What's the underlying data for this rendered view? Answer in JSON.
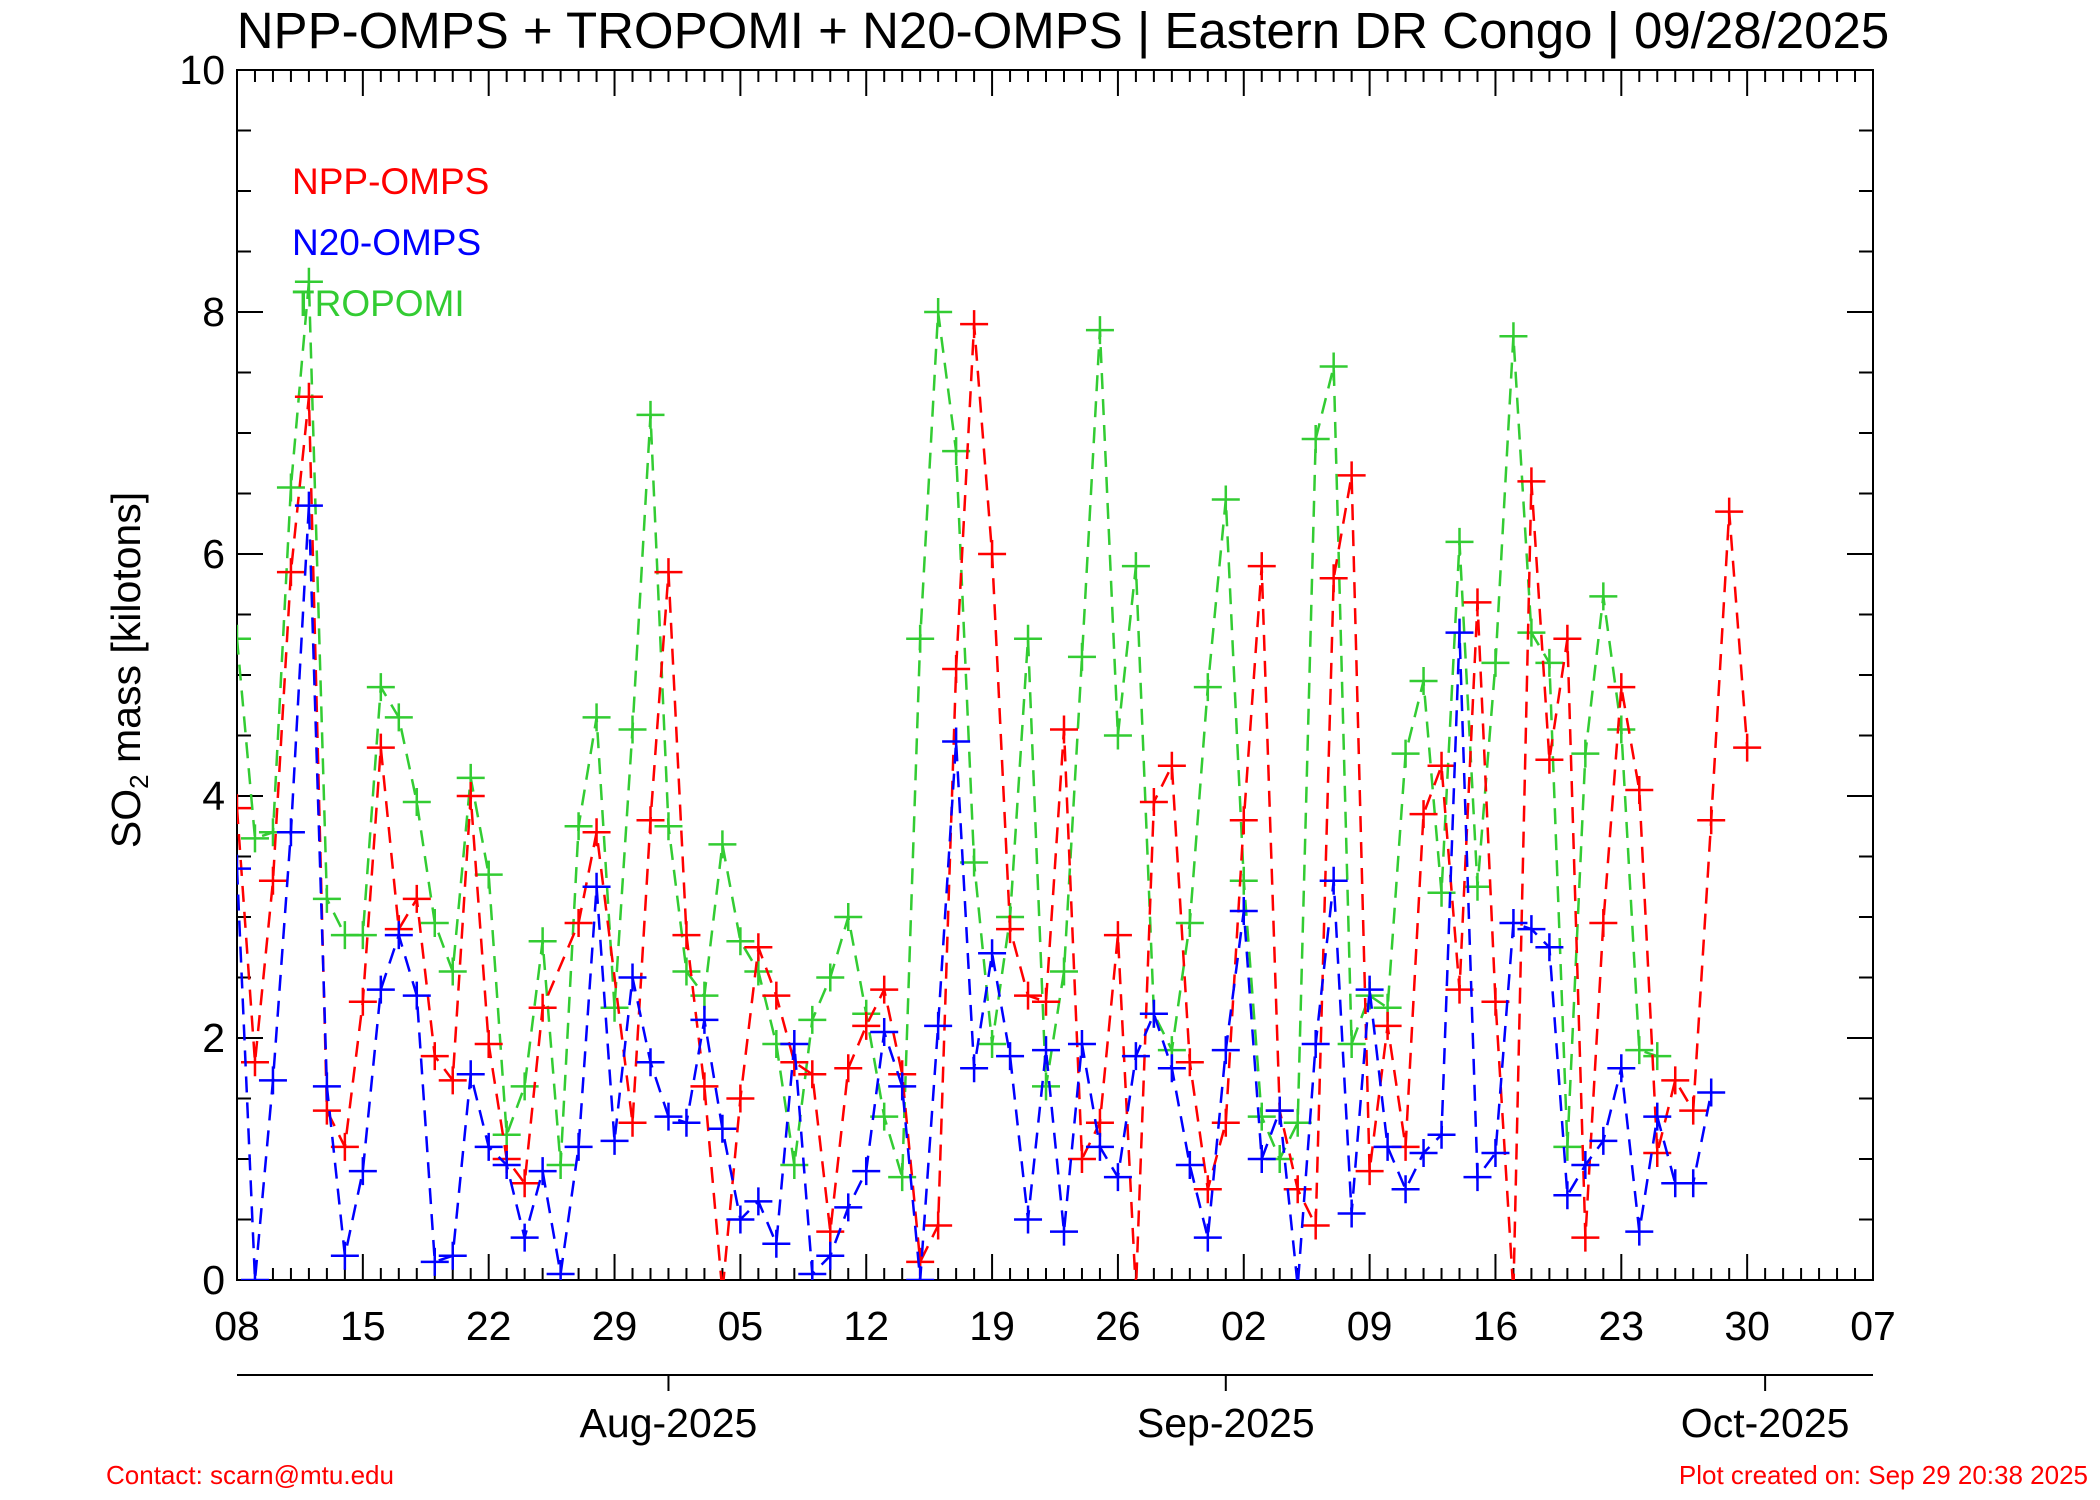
{
  "colors": {
    "npp": "#ff0000",
    "n20": "#0000ff",
    "tropomi": "#33cc33",
    "axis": "#000000",
    "footer": "#ff0000"
  },
  "footer": {
    "contact": "Contact: scarn@mtu.edu",
    "created": "Plot created on: Sep 29 20:38 2025"
  },
  "chart_data": {
    "type": "line",
    "title": "NPP-OMPS + TROPOMI + N20-OMPS | Eastern DR Congo | 09/28/2025",
    "ylabel_main": "SO",
    "ylabel_sub": "2",
    "ylabel_rest": " mass [kilotons]",
    "ylim": [
      0,
      10
    ],
    "yticks": [
      "0",
      "2",
      "4",
      "6",
      "8",
      "10"
    ],
    "xlim": [
      "2025-07-08",
      "2025-10-07"
    ],
    "xticks": [
      {
        "date": "2025-07-08",
        "label": "08"
      },
      {
        "date": "2025-07-15",
        "label": "15"
      },
      {
        "date": "2025-07-22",
        "label": "22"
      },
      {
        "date": "2025-07-29",
        "label": "29"
      },
      {
        "date": "2025-08-05",
        "label": "05"
      },
      {
        "date": "2025-08-12",
        "label": "12"
      },
      {
        "date": "2025-08-19",
        "label": "19"
      },
      {
        "date": "2025-08-26",
        "label": "26"
      },
      {
        "date": "2025-09-02",
        "label": "02"
      },
      {
        "date": "2025-09-09",
        "label": "09"
      },
      {
        "date": "2025-09-16",
        "label": "16"
      },
      {
        "date": "2025-09-23",
        "label": "23"
      },
      {
        "date": "2025-09-30",
        "label": "30"
      },
      {
        "date": "2025-10-07",
        "label": "07"
      }
    ],
    "months": [
      {
        "date": "2025-08-01",
        "label": "Aug-2025"
      },
      {
        "date": "2025-09-01",
        "label": "Sep-2025"
      },
      {
        "date": "2025-10-01",
        "label": "Oct-2025"
      }
    ],
    "legend_position": "top-left",
    "marker": "plus",
    "line_style": "dashed",
    "series": [
      {
        "name": "NPP-OMPS",
        "color": "#ff0000",
        "points": [
          [
            "2025-07-08",
            3.9
          ],
          [
            "2025-07-09",
            1.8
          ],
          [
            "2025-07-10",
            3.3
          ],
          [
            "2025-07-11",
            5.85
          ],
          [
            "2025-07-12",
            7.3
          ],
          [
            "2025-07-13",
            1.4
          ],
          [
            "2025-07-14",
            1.1
          ],
          [
            "2025-07-15",
            2.3
          ],
          [
            "2025-07-16",
            4.4
          ],
          [
            "2025-07-17",
            2.9
          ],
          [
            "2025-07-18",
            3.15
          ],
          [
            "2025-07-19",
            1.85
          ],
          [
            "2025-07-20",
            1.65
          ],
          [
            "2025-07-21",
            4.0
          ],
          [
            "2025-07-22",
            1.95
          ],
          [
            "2025-07-23",
            1.0
          ],
          [
            "2025-07-24",
            0.8
          ],
          [
            "2025-07-25",
            2.25
          ],
          [
            "2025-07-27",
            2.95
          ],
          [
            "2025-07-28",
            3.7
          ],
          [
            "2025-07-30",
            1.3
          ],
          [
            "2025-07-31",
            3.8
          ],
          [
            "2025-08-01",
            5.85
          ],
          [
            "2025-08-02",
            2.85
          ],
          [
            "2025-08-03",
            1.6
          ],
          [
            "2025-08-04",
            -0.1
          ],
          [
            "2025-08-05",
            1.5
          ],
          [
            "2025-08-06",
            2.75
          ],
          [
            "2025-08-07",
            2.35
          ],
          [
            "2025-08-08",
            1.8
          ],
          [
            "2025-08-09",
            1.7
          ],
          [
            "2025-08-10",
            0.4
          ],
          [
            "2025-08-11",
            1.75
          ],
          [
            "2025-08-12",
            2.1
          ],
          [
            "2025-08-13",
            2.4
          ],
          [
            "2025-08-14",
            1.7
          ],
          [
            "2025-08-15",
            0.15
          ],
          [
            "2025-08-16",
            0.45
          ],
          [
            "2025-08-17",
            5.05
          ],
          [
            "2025-08-18",
            7.9
          ],
          [
            "2025-08-19",
            6.0
          ],
          [
            "2025-08-20",
            2.9
          ],
          [
            "2025-08-21",
            2.35
          ],
          [
            "2025-08-22",
            2.3
          ],
          [
            "2025-08-23",
            4.55
          ],
          [
            "2025-08-24",
            1.0
          ],
          [
            "2025-08-25",
            1.3
          ],
          [
            "2025-08-26",
            2.85
          ],
          [
            "2025-08-27",
            -0.1
          ],
          [
            "2025-08-28",
            3.95
          ],
          [
            "2025-08-29",
            4.25
          ],
          [
            "2025-08-30",
            1.8
          ],
          [
            "2025-08-31",
            0.75
          ],
          [
            "2025-09-01",
            1.3
          ],
          [
            "2025-09-02",
            3.8
          ],
          [
            "2025-09-03",
            5.9
          ],
          [
            "2025-09-04",
            1.4
          ],
          [
            "2025-09-05",
            0.75
          ],
          [
            "2025-09-06",
            0.45
          ],
          [
            "2025-09-07",
            5.8
          ],
          [
            "2025-09-08",
            6.65
          ],
          [
            "2025-09-09",
            0.9
          ],
          [
            "2025-09-10",
            2.1
          ],
          [
            "2025-09-11",
            1.1
          ],
          [
            "2025-09-12",
            3.85
          ],
          [
            "2025-09-13",
            4.25
          ],
          [
            "2025-09-14",
            2.4
          ],
          [
            "2025-09-15",
            5.6
          ],
          [
            "2025-09-16",
            2.3
          ],
          [
            "2025-09-17",
            -0.1
          ],
          [
            "2025-09-18",
            6.6
          ],
          [
            "2025-09-19",
            4.3
          ],
          [
            "2025-09-20",
            5.3
          ],
          [
            "2025-09-21",
            0.35
          ],
          [
            "2025-09-22",
            2.95
          ],
          [
            "2025-09-23",
            4.9
          ],
          [
            "2025-09-24",
            4.05
          ],
          [
            "2025-09-25",
            1.05
          ],
          [
            "2025-09-26",
            1.65
          ],
          [
            "2025-09-27",
            1.4
          ],
          [
            "2025-09-28",
            3.8
          ],
          [
            "2025-09-29",
            6.35
          ],
          [
            "2025-09-30",
            4.4
          ]
        ]
      },
      {
        "name": "N20-OMPS",
        "color": "#0000ff",
        "points": [
          [
            "2025-07-08",
            3.4
          ],
          [
            "2025-07-09",
            0.0
          ],
          [
            "2025-07-10",
            1.65
          ],
          [
            "2025-07-11",
            3.7
          ],
          [
            "2025-07-12",
            6.4
          ],
          [
            "2025-07-13",
            1.6
          ],
          [
            "2025-07-14",
            0.2
          ],
          [
            "2025-07-15",
            0.9
          ],
          [
            "2025-07-16",
            2.4
          ],
          [
            "2025-07-17",
            2.85
          ],
          [
            "2025-07-18",
            2.35
          ],
          [
            "2025-07-19",
            0.15
          ],
          [
            "2025-07-20",
            0.2
          ],
          [
            "2025-07-21",
            1.7
          ],
          [
            "2025-07-22",
            1.1
          ],
          [
            "2025-07-23",
            0.95
          ],
          [
            "2025-07-24",
            0.35
          ],
          [
            "2025-07-25",
            0.9
          ],
          [
            "2025-07-26",
            0.05
          ],
          [
            "2025-07-27",
            1.1
          ],
          [
            "2025-07-28",
            3.25
          ],
          [
            "2025-07-29",
            1.15
          ],
          [
            "2025-07-30",
            2.5
          ],
          [
            "2025-07-31",
            1.8
          ],
          [
            "2025-08-01",
            1.35
          ],
          [
            "2025-08-02",
            1.3
          ],
          [
            "2025-08-03",
            2.15
          ],
          [
            "2025-08-04",
            1.25
          ],
          [
            "2025-08-05",
            0.5
          ],
          [
            "2025-08-06",
            0.65
          ],
          [
            "2025-08-07",
            0.3
          ],
          [
            "2025-08-08",
            1.95
          ],
          [
            "2025-08-09",
            0.05
          ],
          [
            "2025-08-10",
            0.2
          ],
          [
            "2025-08-11",
            0.6
          ],
          [
            "2025-08-12",
            0.9
          ],
          [
            "2025-08-13",
            2.05
          ],
          [
            "2025-08-14",
            1.6
          ],
          [
            "2025-08-15",
            0.0
          ],
          [
            "2025-08-16",
            2.1
          ],
          [
            "2025-08-17",
            4.45
          ],
          [
            "2025-08-18",
            1.75
          ],
          [
            "2025-08-19",
            2.7
          ],
          [
            "2025-08-20",
            1.85
          ],
          [
            "2025-08-21",
            0.5
          ],
          [
            "2025-08-22",
            1.9
          ],
          [
            "2025-08-23",
            0.4
          ],
          [
            "2025-08-24",
            1.95
          ],
          [
            "2025-08-25",
            1.1
          ],
          [
            "2025-08-26",
            0.85
          ],
          [
            "2025-08-27",
            1.85
          ],
          [
            "2025-08-28",
            2.2
          ],
          [
            "2025-08-29",
            1.75
          ],
          [
            "2025-08-30",
            0.95
          ],
          [
            "2025-08-31",
            0.35
          ],
          [
            "2025-09-01",
            1.9
          ],
          [
            "2025-09-02",
            3.05
          ],
          [
            "2025-09-03",
            1.0
          ],
          [
            "2025-09-04",
            1.4
          ],
          [
            "2025-09-05",
            -0.05
          ],
          [
            "2025-09-06",
            1.95
          ],
          [
            "2025-09-07",
            3.3
          ],
          [
            "2025-09-08",
            0.55
          ],
          [
            "2025-09-09",
            2.4
          ],
          [
            "2025-09-10",
            1.1
          ],
          [
            "2025-09-11",
            0.75
          ],
          [
            "2025-09-12",
            1.05
          ],
          [
            "2025-09-13",
            1.2
          ],
          [
            "2025-09-14",
            5.35
          ],
          [
            "2025-09-15",
            0.85
          ],
          [
            "2025-09-16",
            1.05
          ],
          [
            "2025-09-17",
            2.95
          ],
          [
            "2025-09-18",
            2.9
          ],
          [
            "2025-09-19",
            2.75
          ],
          [
            "2025-09-20",
            0.7
          ],
          [
            "2025-09-21",
            0.95
          ],
          [
            "2025-09-22",
            1.15
          ],
          [
            "2025-09-23",
            1.75
          ],
          [
            "2025-09-24",
            0.4
          ],
          [
            "2025-09-25",
            1.35
          ],
          [
            "2025-09-26",
            0.8
          ],
          [
            "2025-09-27",
            0.8
          ],
          [
            "2025-09-28",
            1.55
          ]
        ]
      },
      {
        "name": "TROPOMI",
        "color": "#33cc33",
        "points": [
          [
            "2025-07-08",
            5.3
          ],
          [
            "2025-07-09",
            3.65
          ],
          [
            "2025-07-10",
            3.7
          ],
          [
            "2025-07-11",
            6.55
          ],
          [
            "2025-07-12",
            8.25
          ],
          [
            "2025-07-13",
            3.15
          ],
          [
            "2025-07-14",
            2.85
          ],
          [
            "2025-07-15",
            2.85
          ],
          [
            "2025-07-16",
            4.9
          ],
          [
            "2025-07-17",
            4.65
          ],
          [
            "2025-07-18",
            3.95
          ],
          [
            "2025-07-19",
            2.95
          ],
          [
            "2025-07-20",
            2.55
          ],
          [
            "2025-07-21",
            4.15
          ],
          [
            "2025-07-22",
            3.35
          ],
          [
            "2025-07-23",
            1.2
          ],
          [
            "2025-07-24",
            1.6
          ],
          [
            "2025-07-25",
            2.8
          ],
          [
            "2025-07-26",
            0.95
          ],
          [
            "2025-07-27",
            3.75
          ],
          [
            "2025-07-28",
            4.65
          ],
          [
            "2025-07-29",
            2.25
          ],
          [
            "2025-07-30",
            4.55
          ],
          [
            "2025-07-31",
            7.15
          ],
          [
            "2025-08-01",
            3.75
          ],
          [
            "2025-08-02",
            2.55
          ],
          [
            "2025-08-03",
            2.35
          ],
          [
            "2025-08-04",
            3.6
          ],
          [
            "2025-08-05",
            2.8
          ],
          [
            "2025-08-06",
            2.55
          ],
          [
            "2025-08-07",
            1.95
          ],
          [
            "2025-08-08",
            0.95
          ],
          [
            "2025-08-09",
            2.15
          ],
          [
            "2025-08-10",
            2.5
          ],
          [
            "2025-08-11",
            3.0
          ],
          [
            "2025-08-12",
            2.2
          ],
          [
            "2025-08-13",
            1.35
          ],
          [
            "2025-08-14",
            0.85
          ],
          [
            "2025-08-15",
            5.3
          ],
          [
            "2025-08-16",
            8.0
          ],
          [
            "2025-08-17",
            6.85
          ],
          [
            "2025-08-18",
            3.45
          ],
          [
            "2025-08-19",
            1.95
          ],
          [
            "2025-08-20",
            3.0
          ],
          [
            "2025-08-21",
            5.3
          ],
          [
            "2025-08-22",
            1.6
          ],
          [
            "2025-08-23",
            2.55
          ],
          [
            "2025-08-24",
            5.15
          ],
          [
            "2025-08-25",
            7.85
          ],
          [
            "2025-08-26",
            4.5
          ],
          [
            "2025-08-27",
            5.9
          ],
          [
            "2025-08-28",
            2.2
          ],
          [
            "2025-08-29",
            1.9
          ],
          [
            "2025-08-30",
            2.95
          ],
          [
            "2025-08-31",
            4.9
          ],
          [
            "2025-09-01",
            6.45
          ],
          [
            "2025-09-02",
            3.3
          ],
          [
            "2025-09-03",
            1.35
          ],
          [
            "2025-09-04",
            1.0
          ],
          [
            "2025-09-05",
            1.3
          ],
          [
            "2025-09-06",
            6.95
          ],
          [
            "2025-09-07",
            7.55
          ],
          [
            "2025-09-08",
            1.95
          ],
          [
            "2025-09-09",
            2.35
          ],
          [
            "2025-09-10",
            2.25
          ],
          [
            "2025-09-11",
            4.35
          ],
          [
            "2025-09-12",
            4.95
          ],
          [
            "2025-09-13",
            3.2
          ],
          [
            "2025-09-14",
            6.1
          ],
          [
            "2025-09-15",
            3.25
          ],
          [
            "2025-09-16",
            5.1
          ],
          [
            "2025-09-17",
            7.8
          ],
          [
            "2025-09-18",
            5.35
          ],
          [
            "2025-09-19",
            5.1
          ],
          [
            "2025-09-20",
            1.1
          ],
          [
            "2025-09-21",
            4.35
          ],
          [
            "2025-09-22",
            5.65
          ],
          [
            "2025-09-23",
            4.55
          ],
          [
            "2025-09-24",
            1.9
          ],
          [
            "2025-09-25",
            1.85
          ]
        ]
      }
    ]
  }
}
